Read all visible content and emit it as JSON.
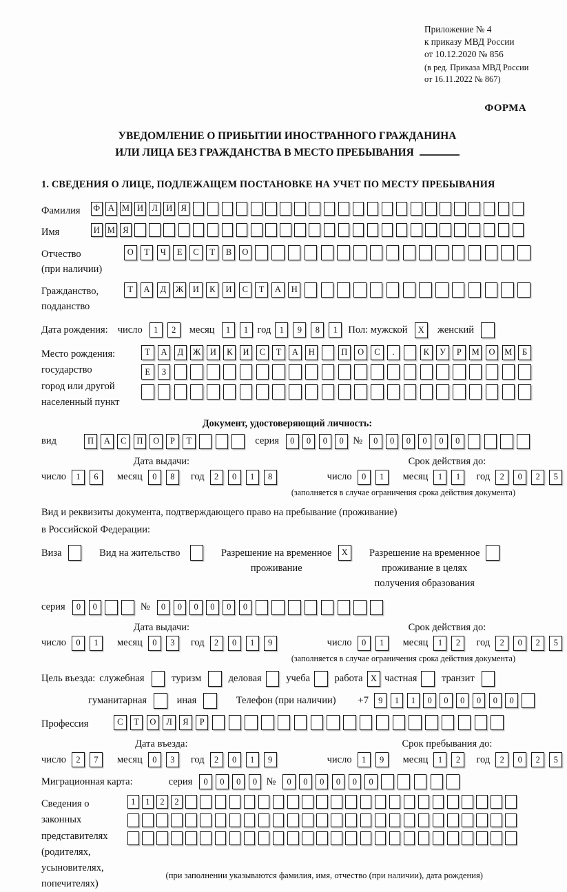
{
  "header": {
    "appendix_lines": [
      "Приложение № 4",
      "к приказу МВД России",
      "от 10.12.2020 № 856"
    ],
    "edition_lines": [
      "(в ред. Приказа МВД России",
      "от 16.11.2022 № 867)"
    ],
    "form_label": "ФОРМА"
  },
  "title": {
    "line1": "УВЕДОМЛЕНИЕ О ПРИБЫТИИ ИНОСТРАННОГО ГРАЖДАНИНА",
    "line2": "ИЛИ ЛИЦА БЕЗ ГРАЖДАНСТВА В МЕСТО ПРЕБЫВАНИЯ"
  },
  "section1_heading": "1. СВЕДЕНИЯ О ЛИЦЕ, ПОДЛЕЖАЩЕМ ПОСТАНОВКЕ НА УЧЕТ ПО МЕСТУ ПРЕБЫВАНИЯ",
  "shared": {
    "day_label": "число",
    "month_label": "месяц",
    "year_label": "год"
  },
  "surname": {
    "label": "Фамилия",
    "cells": {
      "v": "ФАМИЛИЯ",
      "n": 30
    }
  },
  "firstname": {
    "label": "Имя",
    "cells": {
      "v": "ИМЯ",
      "n": 30
    }
  },
  "patronymic": {
    "label1": "Отчество",
    "label2": "(при наличии)",
    "cells": {
      "v": "ОТЧЕСТВО",
      "n": 25
    }
  },
  "citizenship": {
    "label1": "Гражданство,",
    "label2": "подданство",
    "cells": {
      "v": "ТАДЖИКИСТАН",
      "n": 25
    }
  },
  "birthdate": {
    "label": "Дата рождения:",
    "day": {
      "v": "12",
      "n": 2
    },
    "month": {
      "v": "11",
      "n": 2
    },
    "year": {
      "v": "1981",
      "n": 4
    },
    "sex_label": "Пол: мужской",
    "male": {
      "v": "X",
      "n": 1
    },
    "female_label": "женский",
    "female": {
      "v": "",
      "n": 1
    }
  },
  "birthplace": {
    "labels": [
      "Место рождения:",
      "государство",
      "город или другой",
      "населенный пункт"
    ],
    "row1": {
      "v": "ТАДЖИКИСТАН ПОС. КУРМОМБ",
      "n": 24
    },
    "row2": {
      "v": "ЕЗ",
      "n": 24
    },
    "row3": {
      "v": "",
      "n": 24
    }
  },
  "identity_doc": {
    "heading": "Документ, удостоверяющий личность:",
    "kind_label": "вид",
    "kind": {
      "v": "ПАСПОРТ",
      "n": 10
    },
    "series_label": "серия",
    "series": {
      "v": "0000",
      "n": 4
    },
    "number_label": "№",
    "number": {
      "v": "000000",
      "n": 10
    },
    "issue": {
      "title": "Дата выдачи:",
      "day": {
        "v": "16",
        "n": 2
      },
      "month": {
        "v": "08",
        "n": 2
      },
      "year": {
        "v": "2018",
        "n": 4
      }
    },
    "valid": {
      "title": "Срок действия до:",
      "day": {
        "v": "01",
        "n": 2
      },
      "month": {
        "v": "11",
        "n": 2
      },
      "year": {
        "v": "2025",
        "n": 4
      }
    },
    "note": "(заполняется в случае ограничения срока действия документа)"
  },
  "residence_doc": {
    "intro1": "Вид и реквизиты документа, подтверждающего право на пребывание (проживание)",
    "intro2": "в Российской Федерации:",
    "visa_label": "Виза",
    "visa": {
      "v": "",
      "n": 1
    },
    "permit_label": "Вид на жительство",
    "permit": {
      "v": "",
      "n": 1
    },
    "temp_lines": [
      "Разрешение на временное",
      "проживание"
    ],
    "temp": {
      "v": "X",
      "n": 1
    },
    "temp_edu_lines": [
      "Разрешение на временное",
      "проживание в целях",
      "получения образования"
    ],
    "temp_edu": {
      "v": "",
      "n": 1
    },
    "series_label": "серия",
    "series": {
      "v": "00",
      "n": 4
    },
    "number_label": "№",
    "number": {
      "v": "000000",
      "n": 14
    },
    "issue": {
      "title": "Дата выдачи:",
      "day": {
        "v": "01",
        "n": 2
      },
      "month": {
        "v": "03",
        "n": 2
      },
      "year": {
        "v": "2019",
        "n": 4
      }
    },
    "valid": {
      "title": "Срок действия до:",
      "day": {
        "v": "01",
        "n": 2
      },
      "month": {
        "v": "12",
        "n": 2
      },
      "year": {
        "v": "2025",
        "n": 4
      }
    },
    "note": "(заполняется в случае ограничения срока действия документа)"
  },
  "purpose": {
    "prefix": "Цель въезда:",
    "opt_service": "служебная",
    "box_service": {
      "v": "",
      "n": 1
    },
    "opt_tourism": "туризм",
    "box_tourism": {
      "v": "",
      "n": 1
    },
    "opt_business": "деловая",
    "box_business": {
      "v": "",
      "n": 1
    },
    "opt_study": "учеба",
    "box_study": {
      "v": "",
      "n": 1
    },
    "opt_work": "работа",
    "box_work": {
      "v": "X",
      "n": 1
    },
    "opt_private": "частная",
    "box_private": {
      "v": "",
      "n": 1
    },
    "opt_transit": "транзит",
    "box_transit": {
      "v": "",
      "n": 1
    },
    "opt_humanitarian": "гуманитарная",
    "box_humanitarian": {
      "v": "",
      "n": 1
    },
    "opt_other": "иная",
    "box_other": {
      "v": "",
      "n": 1
    },
    "phone_label": "Телефон (при наличии)",
    "phone_prefix": "+7",
    "phone": {
      "v": "911000000",
      "n": 10
    }
  },
  "profession": {
    "label": "Профессия",
    "cells": {
      "v": "СТОЛЯР",
      "n": 24
    }
  },
  "entry": {
    "issue": {
      "title": "Дата въезда:",
      "day": {
        "v": "27",
        "n": 2
      },
      "month": {
        "v": "03",
        "n": 2
      },
      "year": {
        "v": "2019",
        "n": 4
      }
    },
    "valid": {
      "title": "Срок пребывания до:",
      "day": {
        "v": "19",
        "n": 2
      },
      "month": {
        "v": "12",
        "n": 2
      },
      "year": {
        "v": "2025",
        "n": 4
      }
    }
  },
  "migration_card": {
    "label": "Миграционная карта:",
    "series_label": "серия",
    "series": {
      "v": "0000",
      "n": 4
    },
    "number_label": "№",
    "number": {
      "v": "000000",
      "n": 11
    }
  },
  "representatives": {
    "labels": [
      "Сведения о",
      "законных",
      "представителях",
      "(родителях,",
      "усыновителях,",
      "попечителях)"
    ],
    "row1": {
      "v": "1122",
      "n": 27
    },
    "row2": {
      "v": "",
      "n": 27
    },
    "row3": {
      "v": "",
      "n": 27
    },
    "note": "(при заполнении указываются фамилия, имя, отчество (при наличии), дата рождения)"
  }
}
